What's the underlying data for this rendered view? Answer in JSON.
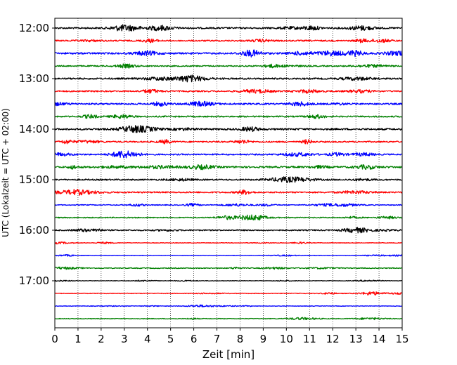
{
  "chart_data": {
    "type": "line",
    "title": "",
    "xlabel": "Zeit  [min]",
    "ylabel": "UTC (Lokalzeit = UTC + 02:00)",
    "xlim": [
      0,
      15
    ],
    "x_ticks": [
      0,
      1,
      2,
      3,
      4,
      5,
      6,
      7,
      8,
      9,
      10,
      11,
      12,
      13,
      14,
      15
    ],
    "y_tick_labels": [
      "12:00",
      "13:00",
      "14:00",
      "15:00",
      "16:00",
      "17:00"
    ],
    "grid": "vertical dotted lines at each minute",
    "trace_interval_minutes": 15,
    "start_time": "12:00",
    "trace_colors": [
      "#000000",
      "#ff0000",
      "#0000ff",
      "#008000"
    ],
    "traces": [
      {
        "start": "12:00",
        "amplitude": 0.9,
        "color": "#000000"
      },
      {
        "start": "12:15",
        "amplitude": 0.8,
        "color": "#ff0000"
      },
      {
        "start": "12:30",
        "amplitude": 1.0,
        "color": "#0000ff"
      },
      {
        "start": "12:45",
        "amplitude": 0.7,
        "color": "#008000"
      },
      {
        "start": "13:00",
        "amplitude": 0.9,
        "color": "#000000"
      },
      {
        "start": "13:15",
        "amplitude": 0.8,
        "color": "#ff0000"
      },
      {
        "start": "13:30",
        "amplitude": 0.9,
        "color": "#0000ff"
      },
      {
        "start": "13:45",
        "amplitude": 0.8,
        "color": "#008000"
      },
      {
        "start": "14:00",
        "amplitude": 1.0,
        "color": "#000000"
      },
      {
        "start": "14:15",
        "amplitude": 0.8,
        "color": "#ff0000"
      },
      {
        "start": "14:30",
        "amplitude": 0.8,
        "color": "#0000ff"
      },
      {
        "start": "14:45",
        "amplitude": 1.0,
        "color": "#008000"
      },
      {
        "start": "15:00",
        "amplitude": 0.8,
        "color": "#000000"
      },
      {
        "start": "15:15",
        "amplitude": 0.8,
        "color": "#ff0000"
      },
      {
        "start": "15:30",
        "amplitude": 0.5,
        "color": "#0000ff"
      },
      {
        "start": "15:45",
        "amplitude": 0.6,
        "color": "#008000"
      },
      {
        "start": "16:00",
        "amplitude": 0.7,
        "color": "#000000"
      },
      {
        "start": "16:15",
        "amplitude": 0.3,
        "color": "#ff0000"
      },
      {
        "start": "16:30",
        "amplitude": 0.3,
        "color": "#0000ff"
      },
      {
        "start": "16:45",
        "amplitude": 0.5,
        "color": "#008000"
      },
      {
        "start": "17:00",
        "amplitude": 0.3,
        "color": "#000000"
      },
      {
        "start": "17:15",
        "amplitude": 0.4,
        "color": "#ff0000"
      },
      {
        "start": "17:30",
        "amplitude": 0.3,
        "color": "#0000ff"
      },
      {
        "start": "17:45",
        "amplitude": 0.4,
        "color": "#008000"
      }
    ]
  }
}
